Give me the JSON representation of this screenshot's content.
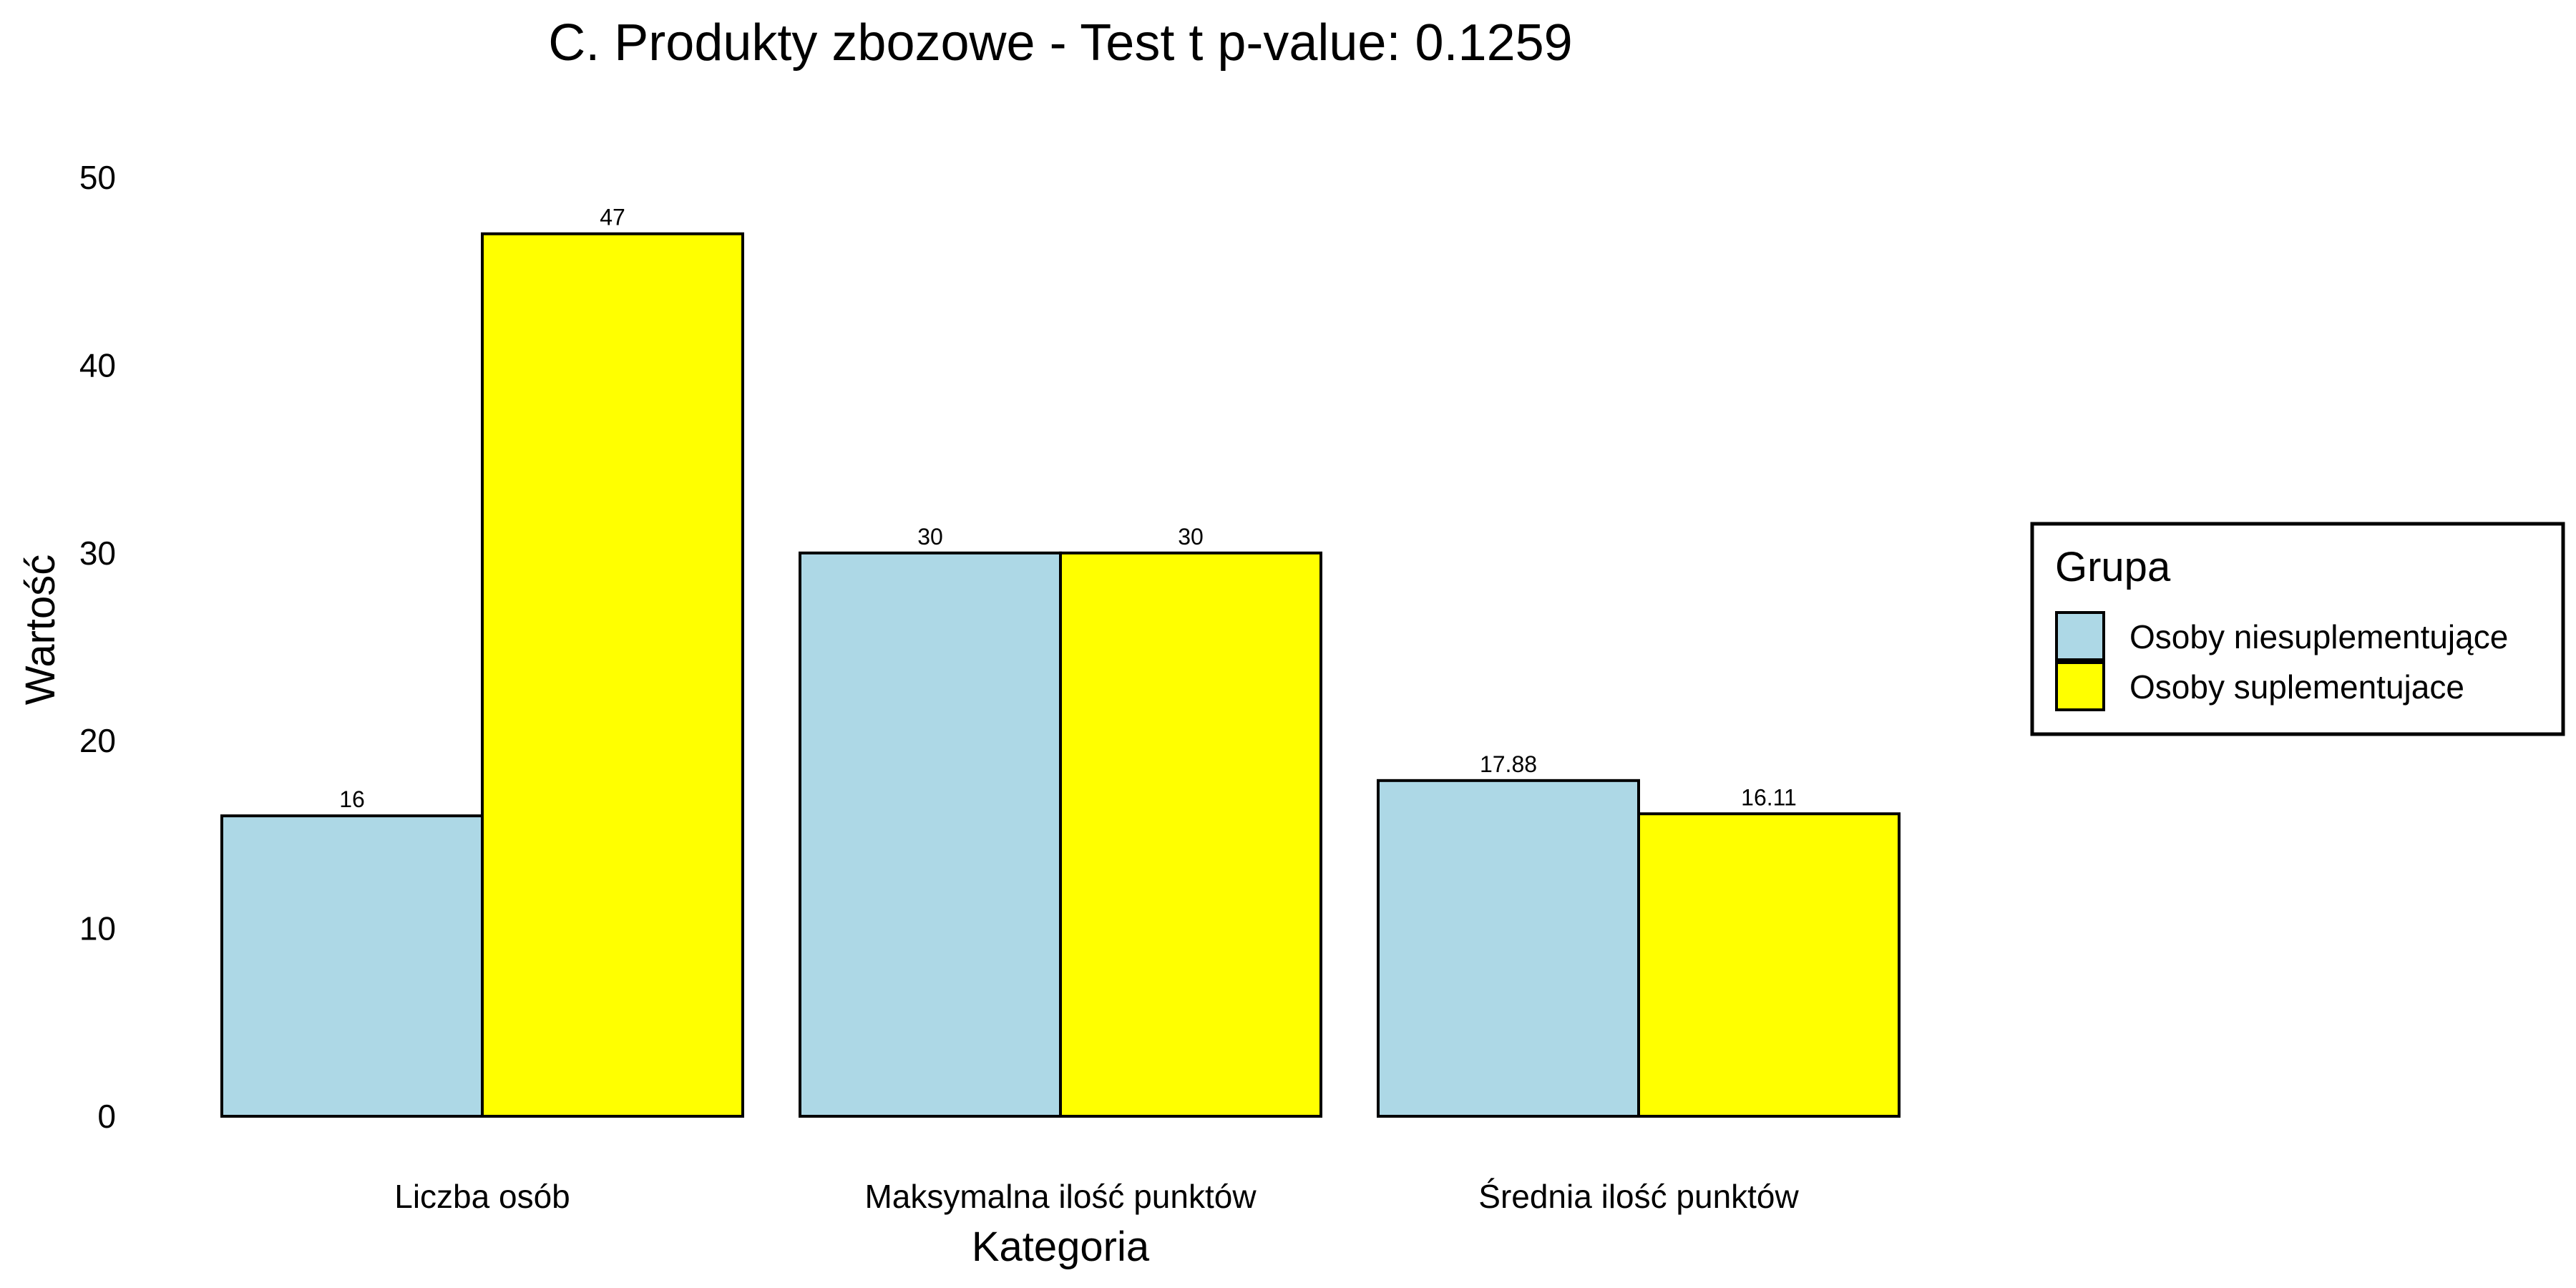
{
  "chart_data": {
    "type": "bar",
    "title": "C. Produkty zbozowe - Test t p-value: 0.1259",
    "xlabel": "Kategoria",
    "ylabel": "Wartość",
    "ylim": [
      0,
      50
    ],
    "yticks": [
      0,
      10,
      20,
      30,
      40,
      50
    ],
    "grid": false,
    "categories": [
      "Liczba osób",
      "Maksymalna ilość punktów",
      "Średnia ilość punktów"
    ],
    "series": [
      {
        "name": "Osoby niesuplementujące",
        "color": "#ADD8E6",
        "values": [
          16,
          30,
          17.88
        ],
        "labels": [
          "16",
          "30",
          "17.88"
        ]
      },
      {
        "name": "Osoby suplementujace",
        "color": "#FFFF00",
        "values": [
          47,
          30,
          16.11
        ],
        "labels": [
          "47",
          "30",
          "16.11"
        ]
      }
    ],
    "legend": {
      "title": "Grupa",
      "position": "right"
    }
  }
}
